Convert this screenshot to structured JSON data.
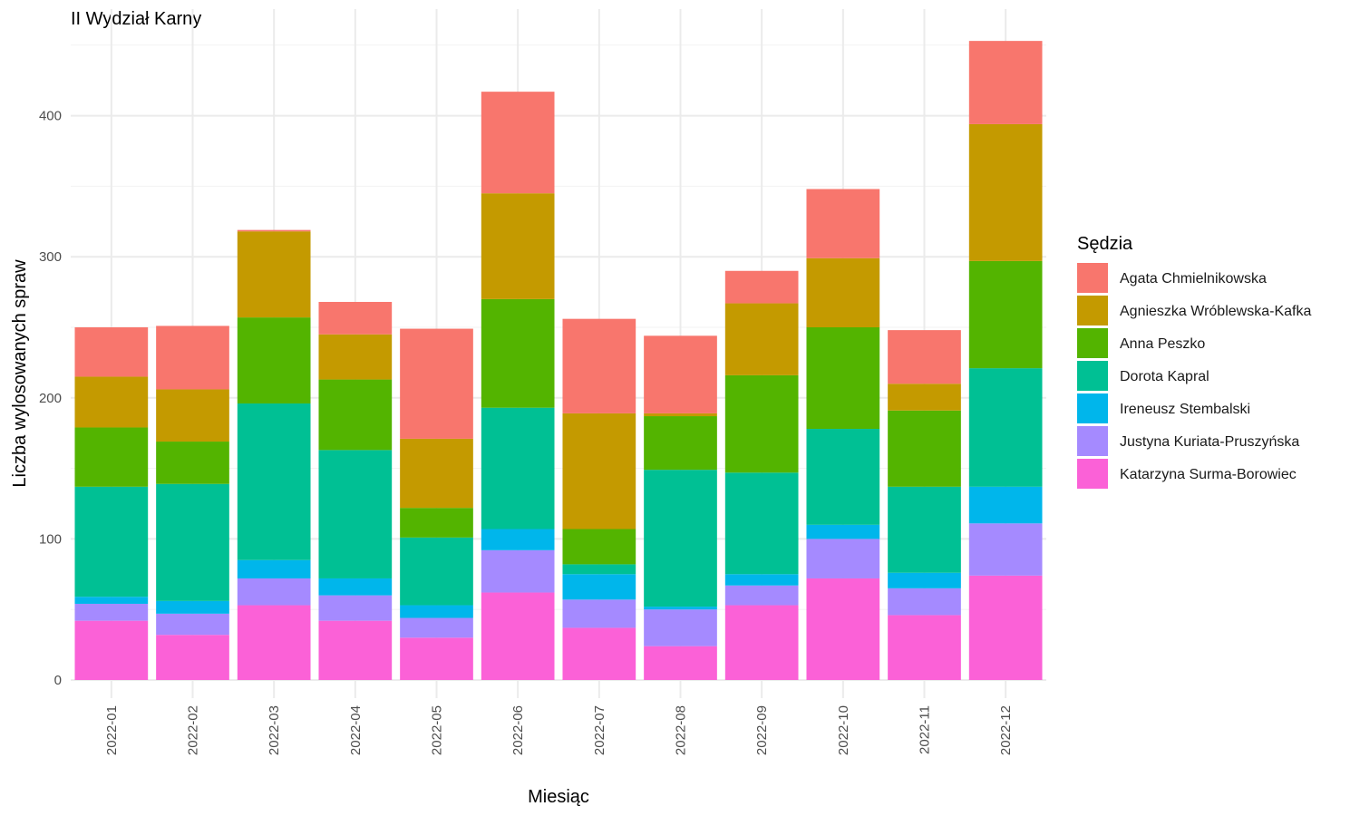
{
  "chart_data": {
    "type": "bar",
    "stacked": true,
    "title": "II Wydział Karny",
    "xlabel": "Miesiąc",
    "ylabel": "Liczba wylosowanych spraw",
    "ylim": [
      0,
      460
    ],
    "yticks": [
      0,
      100,
      200,
      300,
      400
    ],
    "grid": true,
    "legend_title": "Sędzia",
    "legend_position": "right",
    "categories": [
      "2022-01",
      "2022-02",
      "2022-03",
      "2022-04",
      "2022-05",
      "2022-06",
      "2022-07",
      "2022-08",
      "2022-09",
      "2022-10",
      "2022-11",
      "2022-12"
    ],
    "series": [
      {
        "name": "Agata Chmielnikowska",
        "color": "#F8766D",
        "values": [
          35,
          45,
          1,
          23,
          78,
          72,
          67,
          55,
          23,
          49,
          38,
          59
        ]
      },
      {
        "name": "Agnieszka Wróblewska-Kafka",
        "color": "#C49A00",
        "values": [
          36,
          37,
          61,
          32,
          49,
          75,
          82,
          2,
          51,
          49,
          19,
          97
        ]
      },
      {
        "name": "Anna Peszko",
        "color": "#53B400",
        "values": [
          42,
          30,
          61,
          50,
          21,
          77,
          25,
          38,
          69,
          72,
          54,
          76
        ]
      },
      {
        "name": "Dorota Kapral",
        "color": "#00C094",
        "values": [
          78,
          83,
          111,
          91,
          48,
          86,
          7,
          97,
          72,
          68,
          61,
          84
        ]
      },
      {
        "name": "Ireneusz Stembalski",
        "color": "#00B6EB",
        "values": [
          5,
          9,
          13,
          12,
          9,
          15,
          18,
          2,
          8,
          10,
          11,
          26
        ]
      },
      {
        "name": "Justyna Kuriata-Pruszyńska",
        "color": "#A58AFF",
        "values": [
          12,
          15,
          19,
          18,
          14,
          30,
          20,
          26,
          14,
          28,
          19,
          37
        ]
      },
      {
        "name": "Katarzyna Surma-Borowiec",
        "color": "#FB61D7",
        "values": [
          42,
          32,
          53,
          42,
          30,
          62,
          37,
          24,
          53,
          72,
          46,
          74
        ]
      }
    ]
  }
}
